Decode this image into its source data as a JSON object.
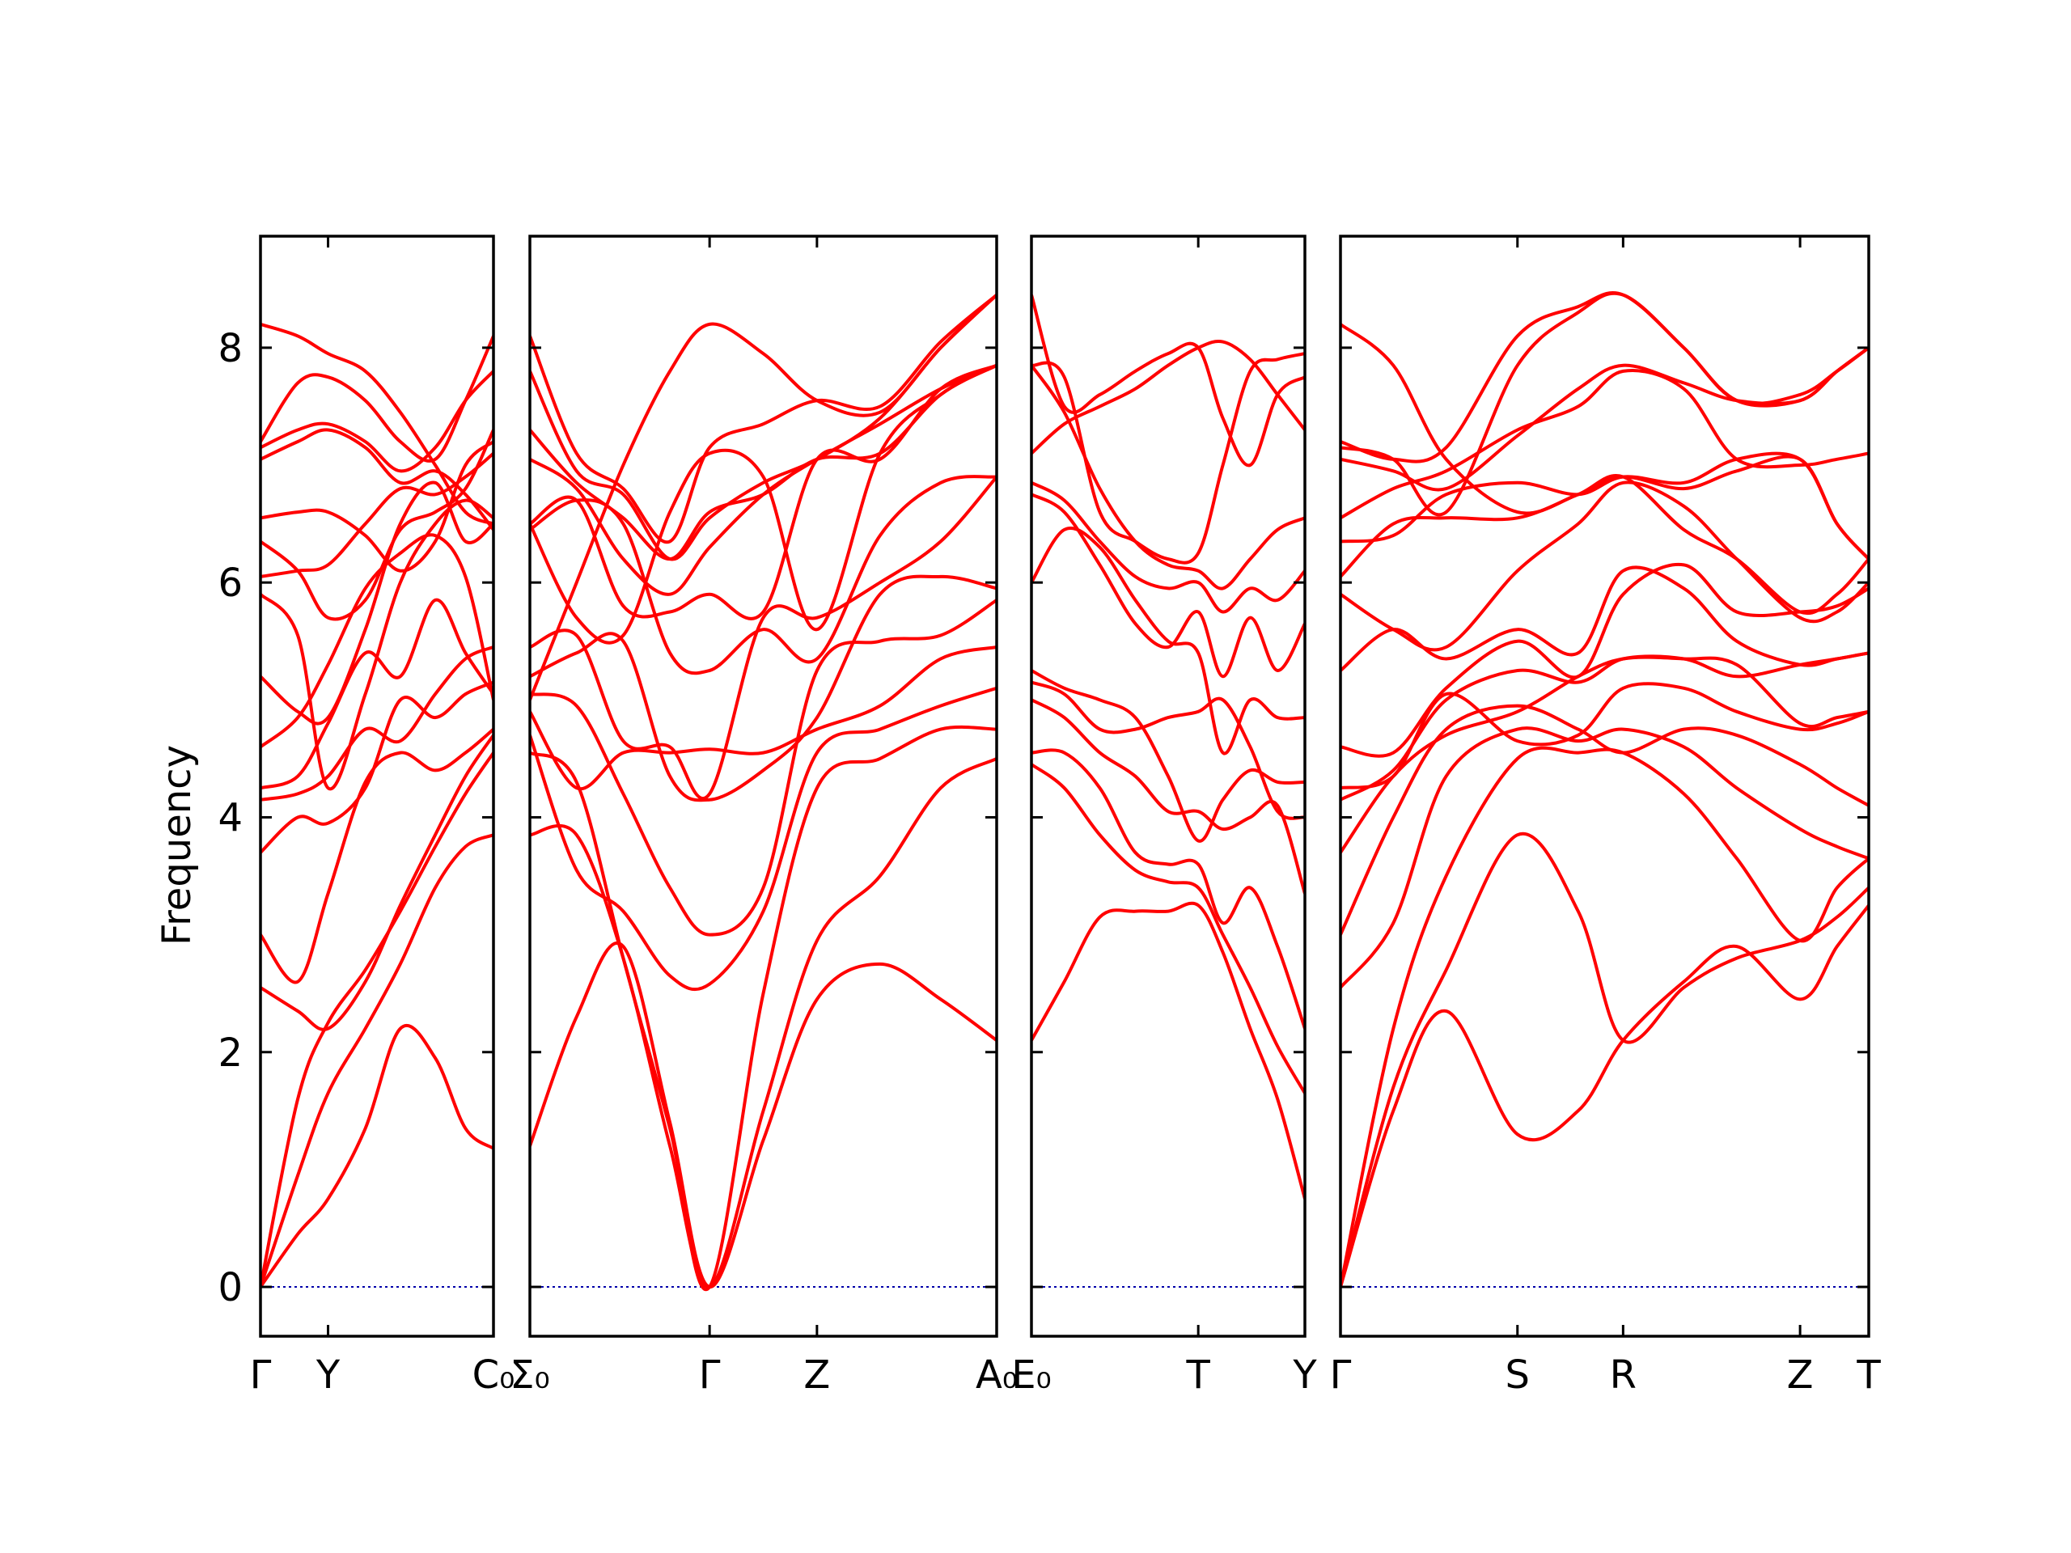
{
  "chart_data": {
    "type": "line",
    "title": "",
    "ylabel": "Frequency",
    "ylim": [
      -0.42,
      8.95
    ],
    "y_ticks": [
      0,
      2,
      4,
      6,
      8
    ],
    "colors": {
      "bands": "#ff0000",
      "zero_line": "#0000aa",
      "frame": "#000000"
    },
    "grid": false,
    "panels": [
      {
        "x_ticks": [
          {
            "x": 0.0,
            "label": "Γ"
          },
          {
            "x": 0.29,
            "label": "Y"
          },
          {
            "x": 1.0,
            "label": "C₀"
          }
        ],
        "x": [
          0.0,
          0.16,
          0.29,
          0.45,
          0.6,
          0.75,
          0.88,
          1.0
        ],
        "series": [
          {
            "values": [
              0.0,
              0.45,
              0.75,
              1.35,
              2.2,
              1.95,
              1.35,
              1.18
            ]
          },
          {
            "values": [
              0.0,
              0.95,
              1.65,
              2.2,
              2.75,
              3.4,
              3.75,
              3.85
            ]
          },
          {
            "values": [
              0.0,
              1.6,
              2.25,
              2.7,
              3.2,
              3.75,
              4.2,
              4.55
            ]
          },
          {
            "values": [
              2.55,
              2.35,
              2.2,
              2.6,
              3.25,
              3.85,
              4.35,
              4.7
            ]
          },
          {
            "values": [
              3.0,
              2.6,
              3.35,
              4.3,
              4.55,
              4.4,
              4.55,
              4.75
            ]
          },
          {
            "values": [
              3.7,
              4.0,
              3.95,
              4.25,
              5.0,
              4.85,
              5.05,
              5.15
            ]
          },
          {
            "values": [
              4.15,
              4.2,
              4.35,
              4.75,
              4.65,
              5.05,
              5.35,
              5.45
            ]
          },
          {
            "values": [
              4.25,
              4.35,
              4.8,
              5.4,
              5.2,
              5.85,
              5.4,
              5.05
            ]
          },
          {
            "values": [
              4.6,
              4.85,
              5.3,
              5.95,
              6.25,
              6.4,
              6.05,
              5.0
            ]
          },
          {
            "values": [
              5.2,
              4.9,
              4.85,
              5.6,
              6.5,
              6.85,
              6.35,
              6.5
            ]
          },
          {
            "values": [
              5.9,
              5.55,
              4.25,
              5.05,
              6.0,
              6.5,
              6.7,
              6.55
            ]
          },
          {
            "values": [
              6.05,
              6.1,
              6.15,
              6.5,
              6.8,
              6.75,
              6.9,
              7.1
            ]
          },
          {
            "values": [
              6.35,
              6.1,
              5.7,
              5.85,
              6.45,
              6.6,
              6.8,
              7.3
            ]
          },
          {
            "values": [
              6.55,
              6.6,
              6.6,
              6.4,
              6.1,
              6.35,
              7.0,
              7.2
            ]
          },
          {
            "values": [
              7.05,
              7.2,
              7.3,
              7.15,
              6.85,
              6.95,
              6.75,
              6.45
            ]
          },
          {
            "values": [
              7.15,
              7.3,
              7.35,
              7.2,
              6.95,
              7.15,
              7.55,
              7.8
            ]
          },
          {
            "values": [
              7.2,
              7.7,
              7.75,
              7.55,
              7.2,
              7.05,
              7.55,
              8.1
            ]
          },
          {
            "values": [
              8.2,
              8.1,
              7.95,
              7.8,
              7.45,
              7.0,
              6.6,
              6.5
            ]
          }
        ]
      },
      {
        "x_ticks": [
          {
            "x": 0.0,
            "label": "Σ₀"
          },
          {
            "x": 0.385,
            "label": "Γ"
          },
          {
            "x": 0.615,
            "label": "Z"
          },
          {
            "x": 1.0,
            "label": "A₀"
          }
        ],
        "x": [
          0.0,
          0.1,
          0.2,
          0.3,
          0.385,
          0.5,
          0.615,
          0.75,
          0.88,
          1.0
        ],
        "series": [
          {
            "values": [
              1.2,
              2.3,
              2.9,
              1.4,
              0.0,
              1.25,
              2.45,
              2.75,
              2.45,
              2.1
            ]
          },
          {
            "values": [
              3.85,
              3.85,
              2.8,
              1.2,
              0.0,
              1.5,
              2.95,
              3.5,
              4.25,
              4.5
            ]
          },
          {
            "values": [
              4.55,
              4.3,
              2.8,
              1.35,
              0.0,
              2.5,
              4.25,
              4.5,
              4.75,
              4.75
            ]
          },
          {
            "values": [
              4.7,
              3.55,
              3.2,
              2.65,
              2.58,
              3.2,
              4.55,
              4.75,
              4.95,
              5.1
            ]
          },
          {
            "values": [
              4.9,
              4.25,
              4.55,
              4.55,
              4.58,
              4.55,
              4.75,
              4.95,
              5.35,
              5.45
            ]
          },
          {
            "values": [
              5.05,
              4.95,
              4.2,
              3.4,
              3.0,
              3.4,
              5.25,
              5.5,
              5.55,
              5.85
            ]
          },
          {
            "values": [
              5.2,
              5.4,
              5.5,
              4.35,
              4.15,
              4.4,
              4.85,
              5.9,
              6.05,
              5.95
            ]
          },
          {
            "values": [
              5.45,
              5.55,
              4.65,
              4.6,
              4.2,
              5.7,
              5.7,
              6.0,
              6.35,
              6.9
            ]
          },
          {
            "values": [
              6.45,
              6.7,
              6.5,
              5.4,
              5.25,
              5.6,
              5.35,
              6.4,
              6.85,
              6.9
            ]
          },
          {
            "values": [
              6.5,
              6.7,
              5.8,
              5.75,
              5.9,
              5.75,
              7.05,
              7.05,
              7.65,
              7.85
            ]
          },
          {
            "values": [
              7.05,
              6.8,
              6.2,
              5.9,
              6.3,
              6.75,
              7.05,
              7.35,
              7.65,
              7.85
            ]
          },
          {
            "values": [
              7.3,
              6.85,
              6.55,
              6.2,
              6.6,
              6.75,
              7.05,
              7.1,
              7.6,
              7.85
            ]
          },
          {
            "values": [
              6.5,
              5.7,
              5.55,
              6.6,
              7.1,
              6.9,
              5.6,
              7.1,
              7.6,
              7.85
            ]
          },
          {
            "values": [
              7.8,
              6.95,
              6.75,
              6.2,
              6.55,
              6.85,
              7.05,
              7.4,
              8.0,
              8.45
            ]
          },
          {
            "values": [
              8.1,
              7.1,
              6.8,
              6.35,
              7.15,
              7.35,
              7.55,
              7.5,
              8.05,
              8.45
            ]
          },
          {
            "values": [
              5.0,
              6.0,
              7.0,
              7.8,
              8.2,
              7.95,
              7.55,
              7.45,
              8.0,
              8.45
            ]
          }
        ]
      },
      {
        "x_ticks": [
          {
            "x": 0.0,
            "label": "E₀"
          },
          {
            "x": 0.61,
            "label": "T"
          },
          {
            "x": 1.0,
            "label": "Y"
          }
        ],
        "x": [
          0.0,
          0.12,
          0.25,
          0.38,
          0.5,
          0.61,
          0.7,
          0.8,
          0.9,
          1.0
        ],
        "series": [
          {
            "values": [
              2.1,
              2.6,
              3.15,
              3.2,
              3.2,
              3.25,
              2.85,
              2.2,
              1.6,
              0.75
            ]
          },
          {
            "values": [
              4.45,
              4.25,
              3.85,
              3.55,
              3.45,
              3.4,
              3.0,
              2.55,
              2.05,
              1.65
            ]
          },
          {
            "values": [
              4.55,
              4.55,
              4.25,
              3.7,
              3.6,
              3.6,
              3.1,
              3.4,
              2.9,
              2.2
            ]
          },
          {
            "values": [
              5.0,
              4.85,
              4.55,
              4.35,
              4.05,
              4.05,
              3.9,
              4.0,
              4.1,
              3.35
            ]
          },
          {
            "values": [
              5.15,
              5.05,
              4.75,
              4.75,
              4.85,
              4.9,
              5.0,
              4.6,
              4.05,
              4.0
            ]
          },
          {
            "values": [
              5.25,
              5.1,
              5.0,
              4.85,
              4.35,
              3.8,
              4.15,
              4.4,
              4.3,
              4.3
            ]
          },
          {
            "values": [
              6.0,
              6.45,
              6.3,
              5.85,
              5.5,
              5.4,
              4.55,
              5.0,
              4.85,
              4.85
            ]
          },
          {
            "values": [
              6.75,
              6.6,
              6.15,
              5.65,
              5.45,
              5.75,
              5.2,
              5.7,
              5.25,
              5.65
            ]
          },
          {
            "values": [
              6.85,
              6.7,
              6.35,
              6.05,
              5.95,
              6.0,
              5.75,
              5.95,
              5.85,
              6.1
            ]
          },
          {
            "values": [
              7.85,
              7.45,
              6.8,
              6.35,
              6.15,
              6.1,
              5.95,
              6.2,
              6.45,
              6.55
            ]
          },
          {
            "values": [
              8.45,
              7.5,
              7.6,
              7.8,
              7.95,
              8.0,
              7.4,
              7.0,
              7.6,
              7.75
            ]
          },
          {
            "values": [
              7.85,
              7.75,
              6.6,
              6.35,
              6.2,
              6.25,
              7.0,
              7.8,
              7.9,
              7.95
            ]
          },
          {
            "values": [
              7.1,
              7.35,
              7.5,
              7.65,
              7.85,
              8.0,
              8.05,
              7.9,
              7.6,
              7.3
            ]
          }
        ]
      },
      {
        "x_ticks": [
          {
            "x": 0.0,
            "label": "Γ"
          },
          {
            "x": 0.335,
            "label": "S"
          },
          {
            "x": 0.535,
            "label": "R"
          },
          {
            "x": 0.87,
            "label": "Z"
          },
          {
            "x": 1.0,
            "label": "T"
          }
        ],
        "x": [
          0.0,
          0.1,
          0.2,
          0.335,
          0.45,
          0.535,
          0.65,
          0.75,
          0.87,
          0.94,
          1.0
        ],
        "series": [
          {
            "values": [
              0.0,
              1.5,
              2.35,
              1.3,
              1.5,
              2.1,
              2.6,
              2.9,
              2.45,
              2.9,
              3.25
            ]
          },
          {
            "values": [
              0.0,
              1.7,
              2.7,
              3.85,
              3.2,
              2.1,
              2.55,
              2.8,
              2.95,
              3.15,
              3.4
            ]
          },
          {
            "values": [
              0.0,
              2.2,
              3.5,
              4.5,
              4.55,
              4.55,
              4.2,
              3.65,
              2.95,
              3.4,
              3.65
            ]
          },
          {
            "values": [
              2.55,
              3.1,
              4.35,
              4.75,
              4.65,
              4.75,
              4.6,
              4.25,
              3.9,
              3.75,
              3.65
            ]
          },
          {
            "values": [
              3.0,
              4.0,
              4.75,
              4.95,
              4.75,
              4.55,
              4.75,
              4.7,
              4.45,
              4.25,
              4.1
            ]
          },
          {
            "values": [
              3.7,
              4.35,
              4.7,
              4.9,
              5.2,
              5.35,
              5.35,
              5.3,
              4.8,
              4.85,
              4.9
            ]
          },
          {
            "values": [
              4.15,
              4.4,
              5.0,
              5.25,
              5.15,
              5.35,
              5.35,
              5.2,
              5.3,
              5.35,
              5.4
            ]
          },
          {
            "values": [
              4.25,
              4.35,
              5.05,
              4.65,
              4.7,
              5.1,
              5.1,
              4.9,
              4.75,
              4.8,
              4.9
            ]
          },
          {
            "values": [
              4.6,
              4.55,
              5.1,
              5.5,
              5.2,
              5.9,
              6.15,
              5.75,
              5.75,
              5.8,
              5.95
            ]
          },
          {
            "values": [
              5.25,
              5.6,
              5.35,
              5.6,
              5.4,
              6.1,
              5.95,
              5.5,
              5.3,
              5.35,
              5.4
            ]
          },
          {
            "values": [
              5.9,
              5.6,
              5.45,
              6.1,
              6.5,
              6.85,
              6.65,
              6.2,
              5.7,
              5.75,
              6.0
            ]
          },
          {
            "values": [
              6.05,
              6.5,
              6.55,
              6.55,
              6.75,
              6.9,
              6.45,
              6.2,
              5.75,
              5.9,
              6.2
            ]
          },
          {
            "values": [
              6.35,
              6.4,
              6.75,
              6.85,
              6.75,
              6.9,
              6.85,
              7.05,
              7.05,
              6.5,
              6.2
            ]
          },
          {
            "values": [
              6.55,
              6.8,
              6.95,
              7.3,
              7.5,
              7.8,
              7.65,
              7.05,
              7.0,
              7.05,
              7.1
            ]
          },
          {
            "values": [
              7.05,
              6.95,
              6.8,
              7.25,
              7.65,
              7.85,
              7.7,
              7.55,
              7.55,
              7.8,
              8.0
            ]
          },
          {
            "values": [
              7.15,
              7.05,
              6.6,
              7.85,
              8.3,
              8.45,
              8.0,
              7.55,
              7.55,
              7.8,
              8.0
            ]
          },
          {
            "values": [
              7.2,
              7.05,
              7.15,
              8.1,
              8.35,
              8.45,
              8.0,
              7.55,
              7.6,
              7.8,
              8.0
            ]
          },
          {
            "values": [
              8.2,
              7.85,
              7.05,
              6.6,
              6.75,
              6.9,
              6.8,
              6.95,
              7.05,
              6.5,
              6.2
            ]
          }
        ]
      }
    ]
  }
}
